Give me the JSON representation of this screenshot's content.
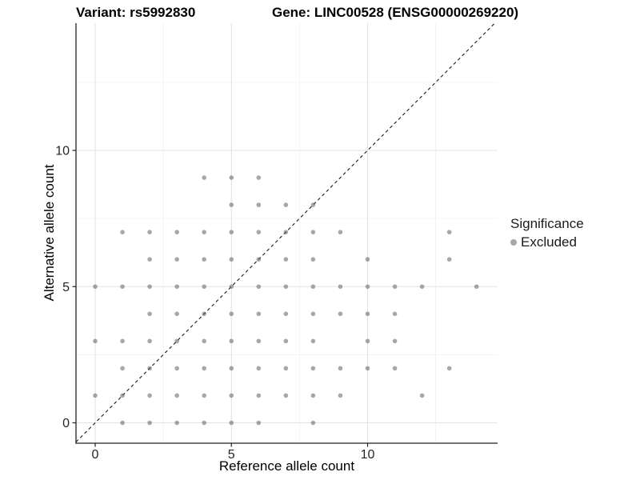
{
  "titles": {
    "variant": "Variant: rs5992830",
    "gene": "Gene: LINC00528 (ENSG00000269220)"
  },
  "chart_data": {
    "type": "scatter",
    "xlabel": "Reference allele count",
    "ylabel": "Alternative allele count",
    "xlim": [
      -0.7,
      14.7
    ],
    "ylim": [
      -0.7,
      14.7
    ],
    "x_ticks": [
      0,
      5,
      10
    ],
    "y_ticks": [
      0,
      5,
      10
    ],
    "x_minor_gridlines": [
      2.5,
      7.5,
      12.5
    ],
    "y_minor_gridlines": [
      2.5,
      7.5,
      12.5
    ],
    "grid": "on",
    "identity_line": {
      "type": "abline",
      "slope": 1,
      "intercept": 0,
      "style": "dashed",
      "color": "#1a1a1a"
    },
    "legend": {
      "title": "Significance",
      "position": "right",
      "items": [
        {
          "label": "Excluded",
          "color": "#a8a8a8"
        }
      ]
    },
    "series": [
      {
        "name": "Excluded",
        "points": [
          [
            1,
            0
          ],
          [
            2,
            0
          ],
          [
            3,
            0
          ],
          [
            4,
            0
          ],
          [
            5,
            0
          ],
          [
            6,
            0
          ],
          [
            8,
            0
          ],
          [
            0,
            1
          ],
          [
            1,
            1
          ],
          [
            2,
            1
          ],
          [
            3,
            1
          ],
          [
            4,
            1
          ],
          [
            5,
            1
          ],
          [
            6,
            1
          ],
          [
            7,
            1
          ],
          [
            8,
            1
          ],
          [
            9,
            1
          ],
          [
            12,
            1
          ],
          [
            1,
            2
          ],
          [
            2,
            2
          ],
          [
            3,
            2
          ],
          [
            4,
            2
          ],
          [
            5,
            2
          ],
          [
            6,
            2
          ],
          [
            7,
            2
          ],
          [
            8,
            2
          ],
          [
            9,
            2
          ],
          [
            10,
            2
          ],
          [
            11,
            2
          ],
          [
            13,
            2
          ],
          [
            0,
            3
          ],
          [
            1,
            3
          ],
          [
            2,
            3
          ],
          [
            3,
            3
          ],
          [
            4,
            3
          ],
          [
            5,
            3
          ],
          [
            6,
            3
          ],
          [
            7,
            3
          ],
          [
            8,
            3
          ],
          [
            10,
            3
          ],
          [
            11,
            3
          ],
          [
            2,
            4
          ],
          [
            3,
            4
          ],
          [
            4,
            4
          ],
          [
            5,
            4
          ],
          [
            6,
            4
          ],
          [
            7,
            4
          ],
          [
            8,
            4
          ],
          [
            9,
            4
          ],
          [
            10,
            4
          ],
          [
            11,
            4
          ],
          [
            0,
            5
          ],
          [
            1,
            5
          ],
          [
            2,
            5
          ],
          [
            3,
            5
          ],
          [
            4,
            5
          ],
          [
            5,
            5
          ],
          [
            6,
            5
          ],
          [
            7,
            5
          ],
          [
            8,
            5
          ],
          [
            9,
            5
          ],
          [
            10,
            5
          ],
          [
            11,
            5
          ],
          [
            12,
            5
          ],
          [
            14,
            5
          ],
          [
            2,
            6
          ],
          [
            3,
            6
          ],
          [
            4,
            6
          ],
          [
            5,
            6
          ],
          [
            6,
            6
          ],
          [
            7,
            6
          ],
          [
            8,
            6
          ],
          [
            10,
            6
          ],
          [
            13,
            6
          ],
          [
            1,
            7
          ],
          [
            2,
            7
          ],
          [
            3,
            7
          ],
          [
            4,
            7
          ],
          [
            5,
            7
          ],
          [
            6,
            7
          ],
          [
            7,
            7
          ],
          [
            8,
            7
          ],
          [
            9,
            7
          ],
          [
            13,
            7
          ],
          [
            5,
            8
          ],
          [
            6,
            8
          ],
          [
            7,
            8
          ],
          [
            8,
            8
          ],
          [
            4,
            9
          ],
          [
            5,
            9
          ],
          [
            6,
            9
          ]
        ]
      }
    ],
    "colors": {
      "point": "#5f5f5f",
      "point_opacity": 0.55,
      "grid_major": "#e3e3e3",
      "grid_minor": "#f0f0f0",
      "axis_line": "#222222",
      "tick_text": "#262626"
    }
  }
}
